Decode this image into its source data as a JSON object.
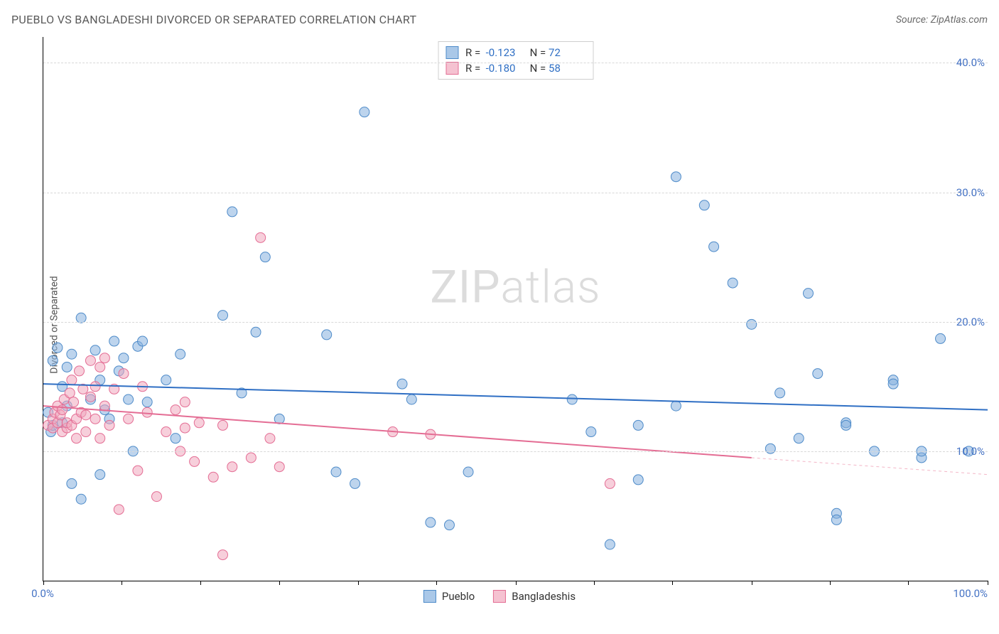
{
  "title": "PUEBLO VS BANGLADESHI DIVORCED OR SEPARATED CORRELATION CHART",
  "source": "Source: ZipAtlas.com",
  "ylabel": "Divorced or Separated",
  "watermark": {
    "zip": "ZIP",
    "atlas": "atlas"
  },
  "chart": {
    "type": "scatter",
    "background_color": "#ffffff",
    "grid_color": "#d8d8d8",
    "xlim": [
      0,
      100
    ],
    "ylim": [
      0,
      42
    ],
    "ytick_step": 10,
    "yticks": [
      10,
      20,
      30,
      40
    ],
    "ytick_labels": [
      "10.0%",
      "20.0%",
      "30.0%",
      "40.0%"
    ],
    "x_minor_ticks": [
      0,
      8.3,
      16.6,
      25,
      33.3,
      41.6,
      50,
      58.3,
      66.6,
      75,
      83.3,
      91.6,
      100
    ],
    "xtick_labels": {
      "left": "0.0%",
      "right": "100.0%"
    },
    "marker_radius": 7,
    "series": {
      "pueblo": {
        "label": "Pueblo",
        "color_fill": "rgba(134,176,222,0.55)",
        "color_stroke": "#4e8bc9",
        "R": "-0.123",
        "N": "72",
        "trend": {
          "x1": 0,
          "y1": 15.2,
          "x2": 100,
          "y2": 13.2,
          "color": "#2f6fc4",
          "width": 2
        },
        "points": [
          [
            0.5,
            13
          ],
          [
            0.8,
            11.5
          ],
          [
            1,
            12
          ],
          [
            1,
            17
          ],
          [
            1.5,
            18
          ],
          [
            2,
            12.2
          ],
          [
            2,
            15
          ],
          [
            2.5,
            13.5
          ],
          [
            2.5,
            16.5
          ],
          [
            3,
            17.5
          ],
          [
            3,
            7.5
          ],
          [
            4,
            6.3
          ],
          [
            4,
            20.3
          ],
          [
            5,
            14
          ],
          [
            5.5,
            17.8
          ],
          [
            6,
            8.2
          ],
          [
            6,
            15.5
          ],
          [
            6.5,
            13.2
          ],
          [
            7,
            12.5
          ],
          [
            7.5,
            18.5
          ],
          [
            8,
            16.2
          ],
          [
            8.5,
            17.2
          ],
          [
            9,
            14
          ],
          [
            9.5,
            10
          ],
          [
            10,
            18.1
          ],
          [
            10.5,
            18.5
          ],
          [
            11,
            13.8
          ],
          [
            13,
            15.5
          ],
          [
            14,
            11
          ],
          [
            14.5,
            17.5
          ],
          [
            19,
            20.5
          ],
          [
            20,
            28.5
          ],
          [
            21,
            14.5
          ],
          [
            22.5,
            19.2
          ],
          [
            23.5,
            25
          ],
          [
            25,
            12.5
          ],
          [
            30,
            19
          ],
          [
            31,
            8.4
          ],
          [
            33,
            7.5
          ],
          [
            34,
            36.2
          ],
          [
            38,
            15.2
          ],
          [
            39,
            14
          ],
          [
            41,
            4.5
          ],
          [
            43,
            4.3
          ],
          [
            45,
            8.4
          ],
          [
            56,
            14
          ],
          [
            58,
            11.5
          ],
          [
            60,
            2.8
          ],
          [
            63,
            7.8
          ],
          [
            63,
            12
          ],
          [
            67,
            31.2
          ],
          [
            67,
            13.5
          ],
          [
            70,
            29
          ],
          [
            71,
            25.8
          ],
          [
            73,
            23
          ],
          [
            75,
            19.8
          ],
          [
            77,
            10.2
          ],
          [
            78,
            14.5
          ],
          [
            80,
            11
          ],
          [
            81,
            22.2
          ],
          [
            82,
            16
          ],
          [
            84,
            5.2
          ],
          [
            84,
            4.7
          ],
          [
            85,
            12.2
          ],
          [
            85,
            12
          ],
          [
            88,
            10
          ],
          [
            90,
            15.5
          ],
          [
            90,
            15.2
          ],
          [
            93,
            9.5
          ],
          [
            93,
            10
          ],
          [
            95,
            18.7
          ],
          [
            98,
            10
          ]
        ]
      },
      "bangladeshi": {
        "label": "Bangladeshis",
        "color_fill": "rgba(241,168,189,0.55)",
        "color_stroke": "#e46d94",
        "R": "-0.180",
        "N": "58",
        "trend_solid": {
          "x1": 0,
          "y1": 13.5,
          "x2": 75,
          "y2": 9.5
        },
        "trend_dash": {
          "x1": 75,
          "y1": 9.5,
          "x2": 100,
          "y2": 8.2
        },
        "points": [
          [
            0.5,
            12
          ],
          [
            1,
            11.8
          ],
          [
            1,
            12.5
          ],
          [
            1.2,
            13
          ],
          [
            1.5,
            12.2
          ],
          [
            1.5,
            13.5
          ],
          [
            1.8,
            12.8
          ],
          [
            2,
            11.5
          ],
          [
            2,
            13.2
          ],
          [
            2.2,
            14
          ],
          [
            2.5,
            11.8
          ],
          [
            2.5,
            12.2
          ],
          [
            2.8,
            14.5
          ],
          [
            3,
            12
          ],
          [
            3,
            15.5
          ],
          [
            3.2,
            13.8
          ],
          [
            3.5,
            11
          ],
          [
            3.5,
            12.5
          ],
          [
            3.8,
            16.2
          ],
          [
            4,
            13
          ],
          [
            4.2,
            14.8
          ],
          [
            4.5,
            11.5
          ],
          [
            4.5,
            12.8
          ],
          [
            5,
            14.2
          ],
          [
            5,
            17
          ],
          [
            5.5,
            12.5
          ],
          [
            5.5,
            15
          ],
          [
            6,
            11
          ],
          [
            6,
            16.5
          ],
          [
            6.5,
            13.5
          ],
          [
            6.5,
            17.2
          ],
          [
            7,
            12
          ],
          [
            7.5,
            14.8
          ],
          [
            8,
            5.5
          ],
          [
            8.5,
            16
          ],
          [
            9,
            12.5
          ],
          [
            10,
            8.5
          ],
          [
            10.5,
            15
          ],
          [
            11,
            13
          ],
          [
            12,
            6.5
          ],
          [
            13,
            11.5
          ],
          [
            14,
            13.2
          ],
          [
            14.5,
            10
          ],
          [
            15,
            11.8
          ],
          [
            15,
            13.8
          ],
          [
            16,
            9.2
          ],
          [
            16.5,
            12.2
          ],
          [
            18,
            8
          ],
          [
            19,
            12
          ],
          [
            19,
            2
          ],
          [
            20,
            8.8
          ],
          [
            22,
            9.5
          ],
          [
            23,
            26.5
          ],
          [
            24,
            11
          ],
          [
            25,
            8.8
          ],
          [
            37,
            11.5
          ],
          [
            41,
            11.3
          ],
          [
            60,
            7.5
          ]
        ]
      }
    }
  }
}
